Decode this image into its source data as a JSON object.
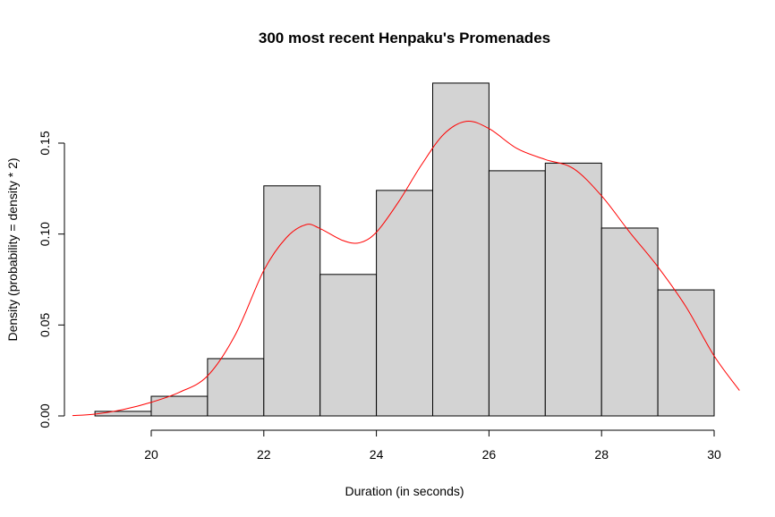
{
  "chart_data": {
    "type": "bar",
    "title": "300 most recent Henpaku's Promenades",
    "xlabel": "Duration (in seconds)",
    "ylabel": "Density (probability = density * 2)",
    "xlim": [
      18.5,
      30.4
    ],
    "ylim": [
      0,
      0.16
    ],
    "x_ticks": [
      20,
      22,
      24,
      26,
      28,
      30
    ],
    "y_ticks": [
      0.0,
      0.05,
      0.1,
      0.15
    ],
    "x_tick_labels": [
      "20",
      "22",
      "24",
      "26",
      "28",
      "30"
    ],
    "y_tick_labels": [
      "0.00",
      "0.05",
      "0.10",
      "0.15"
    ],
    "grid": false,
    "bins": [
      {
        "x0": 19,
        "x1": 20,
        "density": 0.0025
      },
      {
        "x0": 20,
        "x1": 21,
        "density": 0.0108
      },
      {
        "x0": 21,
        "x1": 22,
        "density": 0.0315
      },
      {
        "x0": 22,
        "x1": 23,
        "density": 0.1265
      },
      {
        "x0": 23,
        "x1": 24,
        "density": 0.0778
      },
      {
        "x0": 24,
        "x1": 25,
        "density": 0.124
      },
      {
        "x0": 25,
        "x1": 26,
        "density": 0.183
      },
      {
        "x0": 26,
        "x1": 27,
        "density": 0.1348
      },
      {
        "x0": 27,
        "x1": 28,
        "density": 0.139
      },
      {
        "x0": 28,
        "x1": 29,
        "density": 0.1033
      },
      {
        "x0": 29,
        "x1": 30,
        "density": 0.0693
      }
    ],
    "series": [
      {
        "type": "line",
        "color": "#ff0000",
        "x": [
          18.6,
          19.0,
          19.5,
          20.0,
          20.5,
          21.0,
          21.5,
          22.0,
          22.4,
          22.75,
          23.0,
          23.4,
          23.7,
          24.0,
          24.4,
          24.8,
          25.2,
          25.6,
          26.0,
          26.5,
          27.0,
          27.5,
          28.0,
          28.5,
          29.0,
          29.5,
          30.0,
          30.45
        ],
        "y": [
          0.0002,
          0.001,
          0.0035,
          0.0075,
          0.013,
          0.022,
          0.045,
          0.08,
          0.098,
          0.1052,
          0.103,
          0.0965,
          0.0952,
          0.101,
          0.118,
          0.138,
          0.155,
          0.162,
          0.158,
          0.147,
          0.141,
          0.136,
          0.121,
          0.101,
          0.082,
          0.06,
          0.033,
          0.014
        ]
      }
    ]
  }
}
